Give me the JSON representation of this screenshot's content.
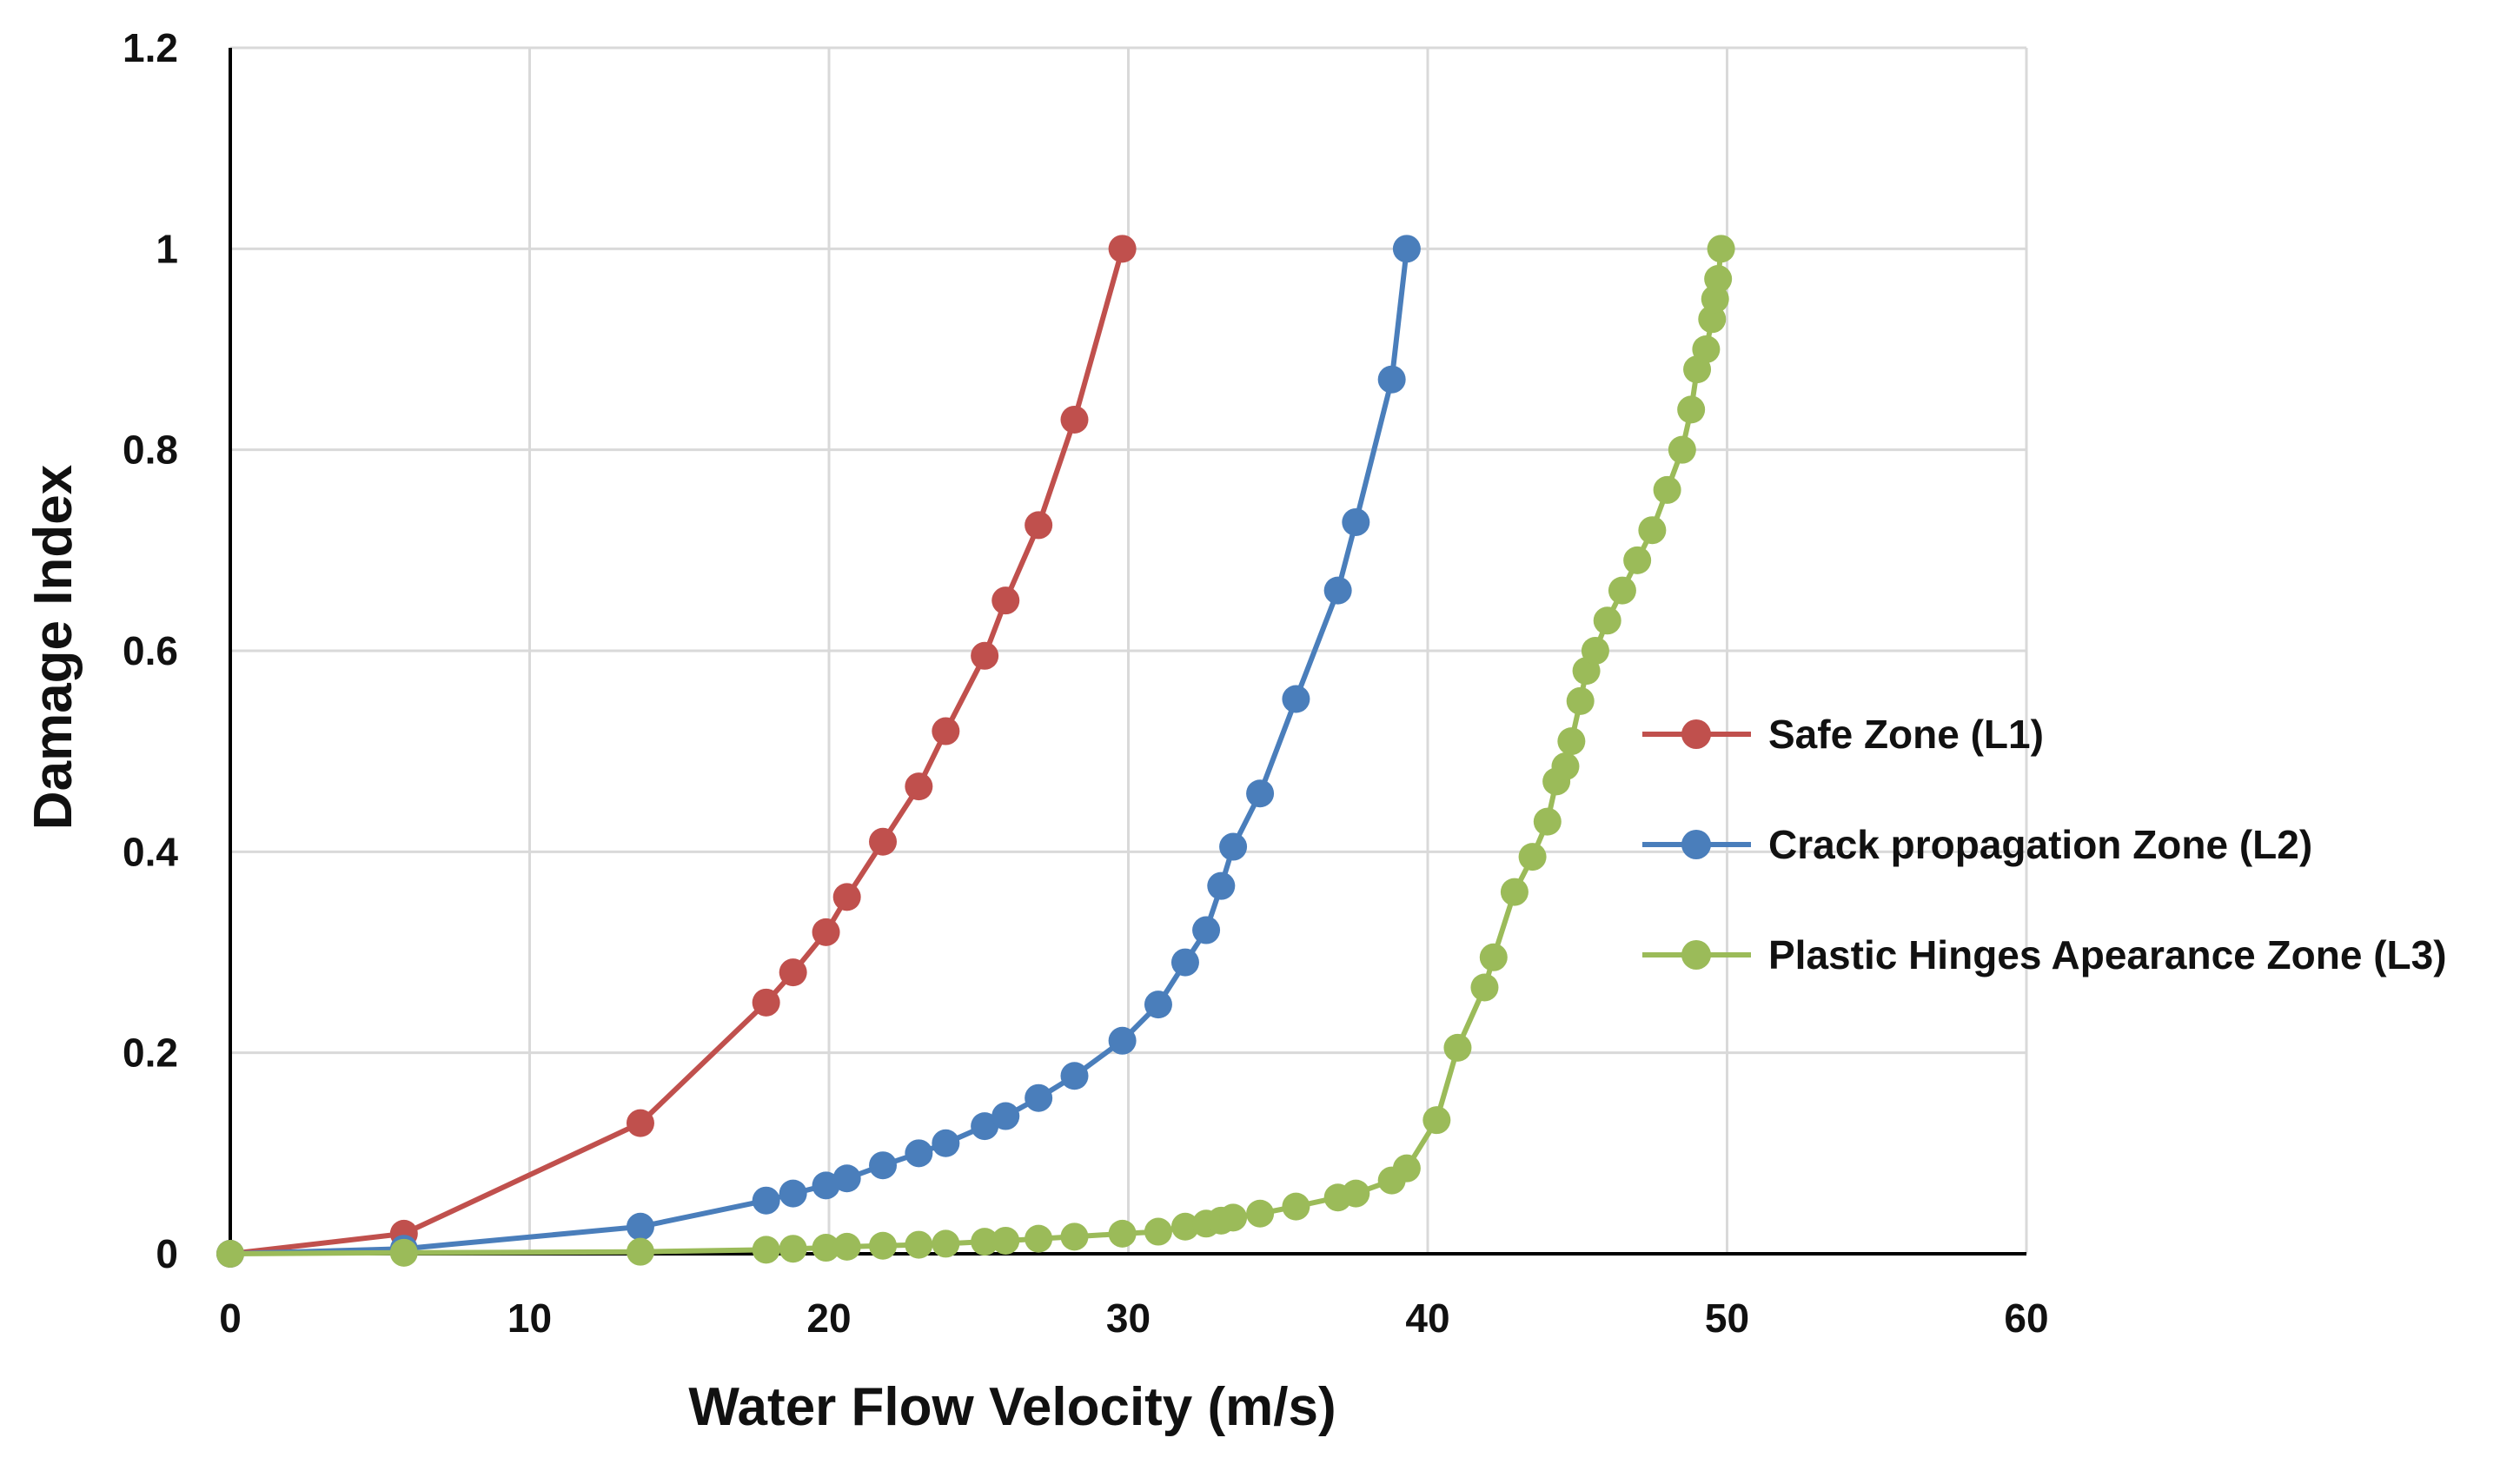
{
  "chart_data": {
    "type": "line",
    "title": "",
    "xlabel": "Water Flow Velocity (m/s)",
    "ylabel": "Damage Index",
    "xlim": [
      0,
      60
    ],
    "ylim": [
      0,
      1.2
    ],
    "x_ticks": [
      0,
      10,
      20,
      30,
      40,
      50,
      60
    ],
    "y_ticks": [
      0,
      0.2,
      0.4,
      0.6,
      0.8,
      1,
      1.2
    ],
    "x_tick_labels": [
      "0",
      "10",
      "20",
      "30",
      "40",
      "50",
      "60"
    ],
    "y_tick_labels": [
      "0",
      "0.2",
      "0.4",
      "0.6",
      "0.8",
      "1",
      "1.2"
    ],
    "grid": true,
    "legend_position": "right",
    "series": [
      {
        "name": "Safe Zone (L1)",
        "color": "#c0504d",
        "x": [
          0,
          5.8,
          13.7,
          17.9,
          18.8,
          19.9,
          20.6,
          21.8,
          23.0,
          23.9,
          25.2,
          25.9,
          27.0,
          28.2,
          29.8
        ],
        "y": [
          0,
          0.02,
          0.13,
          0.25,
          0.28,
          0.32,
          0.355,
          0.41,
          0.465,
          0.52,
          0.595,
          0.65,
          0.725,
          0.83,
          1.0
        ]
      },
      {
        "name": "Crack propagation Zone (L2)",
        "color": "#4a7ebb",
        "x": [
          0,
          5.8,
          13.7,
          17.9,
          18.8,
          19.9,
          20.6,
          21.8,
          23.0,
          23.9,
          25.2,
          25.9,
          27.0,
          28.2,
          29.8,
          31.0,
          31.9,
          32.6,
          33.1,
          33.5,
          34.4,
          35.6,
          37.0,
          37.6,
          38.8,
          39.3
        ],
        "y": [
          0,
          0.005,
          0.027,
          0.053,
          0.06,
          0.068,
          0.075,
          0.088,
          0.1,
          0.11,
          0.127,
          0.137,
          0.155,
          0.177,
          0.212,
          0.248,
          0.29,
          0.322,
          0.366,
          0.405,
          0.458,
          0.552,
          0.66,
          0.728,
          0.87,
          1.0
        ]
      },
      {
        "name": "Plastic Hinges Apearance Zone (L3)",
        "color": "#9bbb59",
        "x": [
          0,
          5.8,
          13.7,
          17.9,
          18.8,
          19.9,
          20.6,
          21.8,
          23.0,
          23.9,
          25.2,
          25.9,
          27.0,
          28.2,
          29.8,
          31.0,
          31.9,
          32.6,
          33.1,
          33.5,
          34.4,
          35.6,
          37.0,
          37.6,
          38.8,
          39.3,
          40.3,
          41.0,
          41.9,
          42.2,
          42.9,
          43.5,
          44.0,
          44.3,
          44.6,
          44.8,
          45.1,
          45.3,
          45.6,
          46.0,
          46.5,
          47.0,
          47.5,
          48.0,
          48.5,
          48.8,
          49.0,
          49.3,
          49.5,
          49.6,
          49.7,
          49.8
        ],
        "y": [
          0,
          0.001,
          0.002,
          0.004,
          0.005,
          0.006,
          0.007,
          0.008,
          0.009,
          0.01,
          0.012,
          0.013,
          0.015,
          0.017,
          0.02,
          0.022,
          0.027,
          0.03,
          0.033,
          0.036,
          0.04,
          0.047,
          0.056,
          0.06,
          0.073,
          0.085,
          0.133,
          0.205,
          0.265,
          0.295,
          0.36,
          0.395,
          0.43,
          0.47,
          0.485,
          0.51,
          0.55,
          0.58,
          0.6,
          0.63,
          0.66,
          0.69,
          0.72,
          0.76,
          0.8,
          0.84,
          0.88,
          0.9,
          0.93,
          0.95,
          0.97,
          1.0
        ]
      }
    ]
  }
}
